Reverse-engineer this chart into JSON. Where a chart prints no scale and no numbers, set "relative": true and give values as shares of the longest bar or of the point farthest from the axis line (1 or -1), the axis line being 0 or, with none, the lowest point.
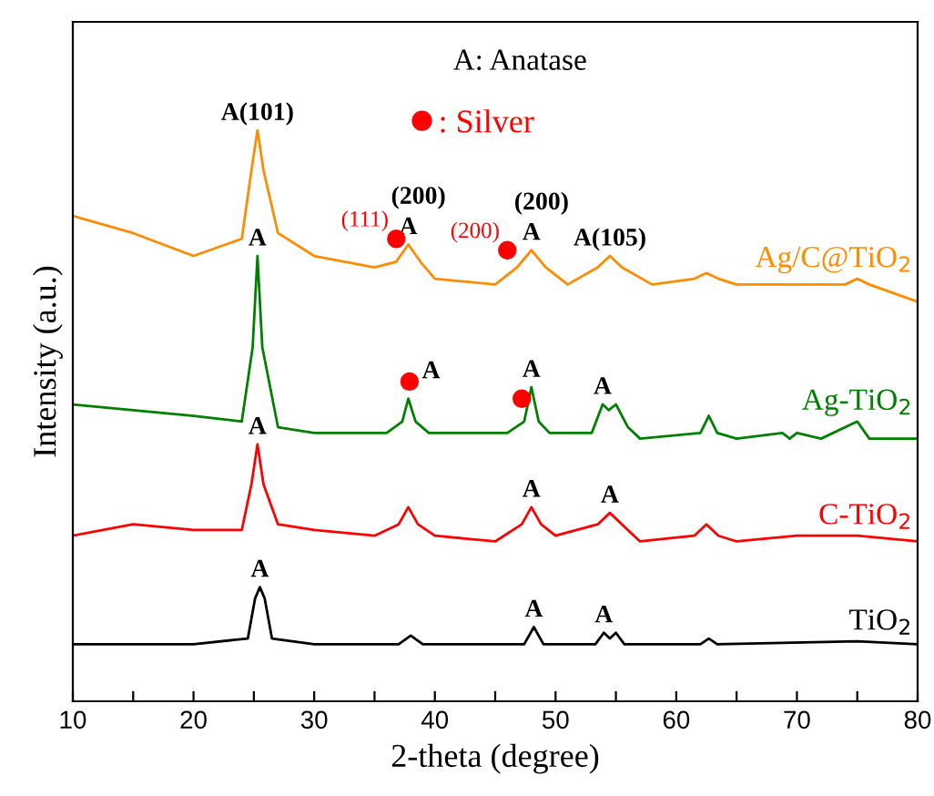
{
  "chart_data": {
    "type": "line",
    "relative": true,
    "xlabel": "2-theta (degree)",
    "ylabel": "Intensity (a.u.)",
    "xlim": [
      10,
      80
    ],
    "xticks": [
      10,
      {
        "value": 15,
        "label": null
      },
      20,
      {
        "value": 25,
        "label": null
      },
      30,
      {
        "value": 35,
        "label": null
      },
      40,
      {
        "value": 45,
        "label": null
      },
      50,
      {
        "value": 55,
        "label": null
      },
      60,
      {
        "value": 65,
        "label": null
      },
      70,
      {
        "value": 75,
        "label": null
      },
      80
    ],
    "grid": false,
    "legend": "top",
    "series": [
      {
        "name": "Ag/C@TiO$_{2}$",
        "color": "#ff8c00",
        "x": [
          10,
          15,
          20,
          24,
          24.8,
          25.3,
          25.8,
          27,
          30,
          35,
          36.8,
          37.8,
          38.8,
          40,
          45,
          46.8,
          48,
          49.2,
          51,
          53.5,
          54.5,
          55.5,
          58,
          61.5,
          62.5,
          63.5,
          65,
          70,
          74,
          75,
          76,
          80
        ],
        "values": [
          0.85,
          0.82,
          0.78,
          0.81,
          0.93,
          1.0,
          0.93,
          0.82,
          0.78,
          0.76,
          0.77,
          0.8,
          0.77,
          0.74,
          0.73,
          0.76,
          0.79,
          0.76,
          0.73,
          0.76,
          0.78,
          0.76,
          0.73,
          0.74,
          0.75,
          0.74,
          0.73,
          0.73,
          0.73,
          0.74,
          0.73,
          0.7
        ]
      },
      {
        "name": "Ag-TiO$_{2}$",
        "color": "#008000",
        "x": [
          10,
          15,
          20,
          24,
          24.9,
          25.3,
          25.7,
          27,
          30,
          36,
          37.3,
          37.8,
          38.4,
          39.5,
          46,
          47.4,
          48,
          48.6,
          49.5,
          53,
          53.9,
          54.4,
          55,
          56,
          57,
          62,
          62.7,
          63.4,
          65,
          68.8,
          69.4,
          70,
          72,
          75,
          76,
          80
        ],
        "values": [
          0.52,
          0.51,
          0.5,
          0.49,
          0.62,
          0.78,
          0.62,
          0.48,
          0.47,
          0.47,
          0.49,
          0.53,
          0.49,
          0.47,
          0.47,
          0.49,
          0.55,
          0.49,
          0.47,
          0.47,
          0.52,
          0.51,
          0.52,
          0.48,
          0.46,
          0.47,
          0.5,
          0.47,
          0.46,
          0.47,
          0.46,
          0.47,
          0.46,
          0.49,
          0.46,
          0.46
        ]
      },
      {
        "name": "C-TiO$_{2}$",
        "color": "#ff0000",
        "x": [
          10,
          15,
          20,
          24,
          24.8,
          25.3,
          25.8,
          27,
          30,
          35,
          37,
          37.8,
          38.6,
          40,
          45,
          47.2,
          48,
          48.8,
          50,
          53.5,
          54.5,
          55.5,
          57,
          61.5,
          62.5,
          63.5,
          65,
          70,
          75,
          80
        ],
        "values": [
          0.29,
          0.31,
          0.3,
          0.3,
          0.38,
          0.45,
          0.38,
          0.31,
          0.3,
          0.29,
          0.31,
          0.34,
          0.31,
          0.29,
          0.28,
          0.31,
          0.34,
          0.31,
          0.29,
          0.31,
          0.33,
          0.31,
          0.28,
          0.29,
          0.31,
          0.29,
          0.28,
          0.29,
          0.29,
          0.28
        ]
      },
      {
        "name": "TiO$_{2}$",
        "color": "#000000",
        "x": [
          10,
          20,
          24.5,
          25.1,
          25.5,
          25.9,
          26.5,
          30,
          37,
          38,
          39,
          47.4,
          48.2,
          49,
          53.3,
          54,
          54.5,
          55,
          55.7,
          62,
          62.7,
          63.4,
          75,
          80
        ],
        "values": [
          0.1,
          0.1,
          0.11,
          0.18,
          0.2,
          0.18,
          0.11,
          0.1,
          0.1,
          0.115,
          0.1,
          0.1,
          0.13,
          0.1,
          0.1,
          0.12,
          0.11,
          0.12,
          0.1,
          0.1,
          0.11,
          0.1,
          0.105,
          0.1
        ]
      },
      {
        "type": "scatter",
        "name": ": Silver",
        "color": "#ff0000",
        "marker": "circle",
        "x": [
          36.8,
          46.0,
          37.9,
          47.2
        ],
        "values": [
          0.81,
          0.79,
          0.56,
          0.53
        ]
      }
    ],
    "annotations": [
      "A: Anatase",
      {
        "text": "(111)",
        "x": 36.8,
        "y": 0.81
      },
      {
        "text": "(200)",
        "x": 46.0,
        "y": 0.79
      },
      {
        "text": "A(101)",
        "x": 25.3,
        "y": 1.0
      },
      {
        "text": "A",
        "x": 25.3,
        "y": 0.78
      },
      {
        "text": "A",
        "x": 37.8,
        "y": 0.8
      },
      {
        "text": "(200)",
        "x": 37.8,
        "y": 0.8
      },
      {
        "text": "A",
        "x": 48,
        "y": 0.79
      },
      {
        "text": "(200)",
        "x": 48,
        "y": 0.79
      },
      {
        "text": "A(105)",
        "x": 54.5,
        "y": 0.78
      },
      {
        "text": "A",
        "x": 37.8,
        "y": 0.53
      },
      {
        "text": "A",
        "x": 48,
        "y": 0.55
      },
      {
        "text": "A",
        "x": 53.9,
        "y": 0.52
      },
      {
        "text": "A",
        "x": 25.3,
        "y": 0.45
      },
      {
        "text": "A",
        "x": 48,
        "y": 0.34
      },
      {
        "text": "A",
        "x": 54.5,
        "y": 0.33
      },
      {
        "text": "A",
        "x": 25.5,
        "y": 0.2
      },
      {
        "text": "A",
        "x": 48.2,
        "y": 0.13
      },
      {
        "text": "A",
        "x": 54,
        "y": 0.12
      }
    ]
  }
}
